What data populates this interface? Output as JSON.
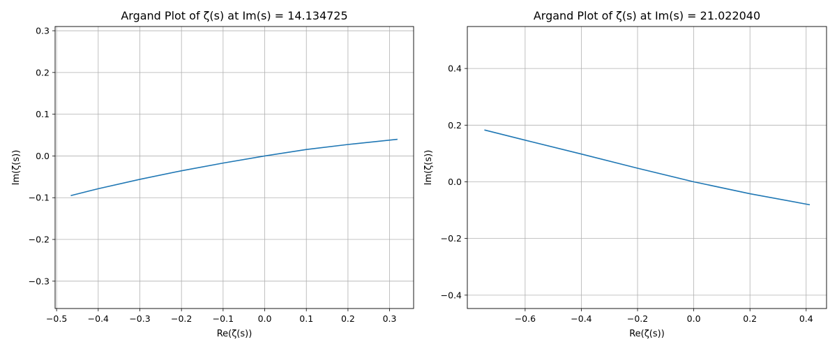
{
  "chart_data": [
    {
      "type": "line",
      "title": "Argand Plot of ζ(s) at Im(s) = 14.134725",
      "xlabel": "Re(ζ(s))",
      "ylabel": "Im(ζ(s))",
      "xlim": [
        -0.5036,
        0.3577
      ],
      "ylim": [
        -0.3655,
        0.3101
      ],
      "xticks": [
        -0.5,
        -0.4,
        -0.3,
        -0.2,
        -0.1,
        0.0,
        0.1,
        0.2,
        0.3
      ],
      "xtick_labels": [
        "−0.5",
        "−0.4",
        "−0.3",
        "−0.2",
        "−0.1",
        "0.0",
        "0.1",
        "0.2",
        "0.3"
      ],
      "yticks": [
        -0.3,
        -0.2,
        -0.1,
        0.0,
        0.1,
        0.2,
        0.3
      ],
      "ytick_labels": [
        "−0.3",
        "−0.2",
        "−0.1",
        "0.0",
        "0.1",
        "0.2",
        "0.3"
      ],
      "grid": true,
      "line_color": "#1f77b4",
      "series": [
        {
          "x": [
            -0.466,
            -0.4,
            -0.3,
            -0.2,
            -0.1,
            0.0,
            0.1,
            0.2,
            0.319
          ],
          "y": [
            -0.095,
            -0.0785,
            -0.056,
            -0.0355,
            -0.017,
            0.0,
            0.0155,
            0.0275,
            0.04
          ]
        }
      ]
    },
    {
      "type": "line",
      "title": "Argand Plot of ζ(s) at Im(s) = 21.022040",
      "xlabel": "Re(ζ(s))",
      "ylabel": "Im(ζ(s))",
      "xlim": [
        -0.8057,
        0.4725
      ],
      "ylim": [
        -0.4472,
        0.5481
      ],
      "xticks": [
        -0.6,
        -0.4,
        -0.2,
        0.0,
        0.2,
        0.4
      ],
      "xtick_labels": [
        "−0.6",
        "−0.4",
        "−0.2",
        "0.0",
        "0.2",
        "0.4"
      ],
      "yticks": [
        -0.4,
        -0.2,
        0.0,
        0.2,
        0.4
      ],
      "ytick_labels": [
        "−0.4",
        "−0.2",
        "0.0",
        "0.2",
        "0.4"
      ],
      "grid": true,
      "line_color": "#1f77b4",
      "series": [
        {
          "x": [
            -0.745,
            -0.6,
            -0.4,
            -0.2,
            0.0,
            0.2,
            0.413
          ],
          "y": [
            0.183,
            0.147,
            0.098,
            0.048,
            0.0,
            -0.042,
            -0.081
          ]
        }
      ]
    }
  ]
}
